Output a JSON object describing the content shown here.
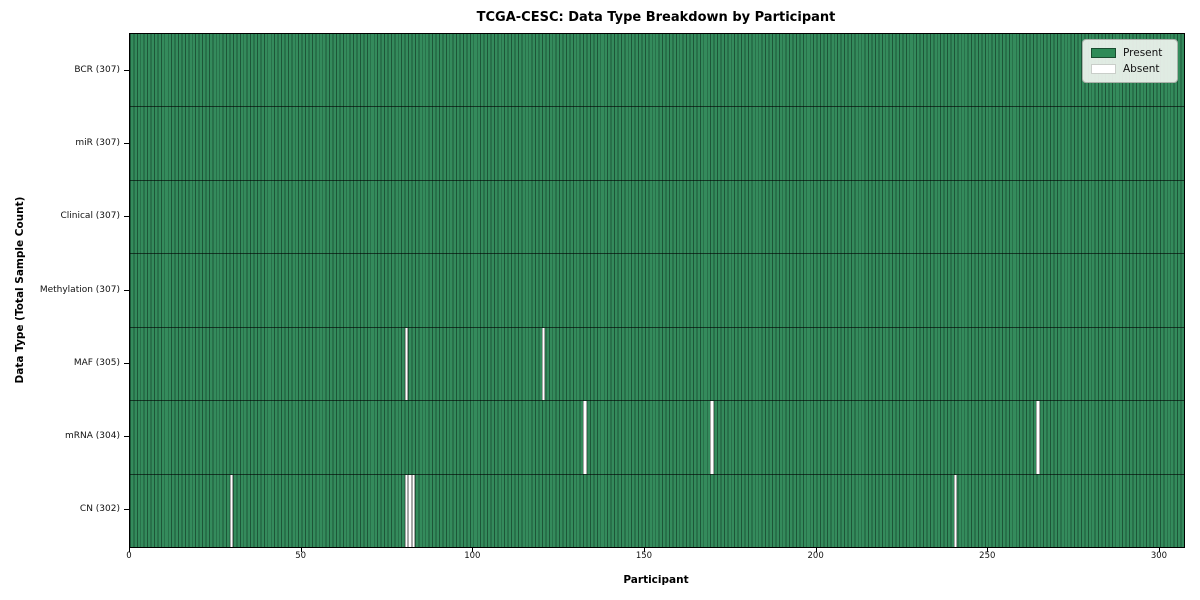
{
  "title": "TCGA-CESC: Data Type Breakdown by Participant",
  "legend": {
    "present_label": "Present",
    "absent_label": "Absent"
  },
  "colors": {
    "present": "#2e8b57",
    "absent": "#ffffff",
    "cell_edge": "#0a2618",
    "legend_background": "#eef3ee"
  },
  "chart_data": {
    "type": "heatmap",
    "title": "TCGA-CESC: Data Type Breakdown by Participant",
    "xlabel": "Participant",
    "ylabel": "Data Type (Total Sample Count)",
    "legend_entries": [
      "Present",
      "Absent"
    ],
    "legend_position": "upper right",
    "grid": false,
    "n_participants": 307,
    "x_ticks": [
      0,
      50,
      100,
      150,
      200,
      250,
      300
    ],
    "xlim": [
      0,
      307
    ],
    "rows": [
      {
        "label": "BCR (307)",
        "data_type": "BCR",
        "present_count": 307,
        "absent_participants": []
      },
      {
        "label": "miR (307)",
        "data_type": "miR",
        "present_count": 307,
        "absent_participants": []
      },
      {
        "label": "Clinical (307)",
        "data_type": "Clinical",
        "present_count": 307,
        "absent_participants": []
      },
      {
        "label": "Methylation (307)",
        "data_type": "Methylation",
        "present_count": 307,
        "absent_participants": []
      },
      {
        "label": "MAF (305)",
        "data_type": "MAF",
        "present_count": 305,
        "absent_participants": [
          80,
          120
        ]
      },
      {
        "label": "mRNA (304)",
        "data_type": "mRNA",
        "present_count": 304,
        "absent_participants": [
          132,
          169,
          264
        ]
      },
      {
        "label": "CN (302)",
        "data_type": "CN",
        "present_count": 302,
        "absent_participants": [
          29,
          80,
          81,
          82,
          240
        ]
      }
    ]
  }
}
